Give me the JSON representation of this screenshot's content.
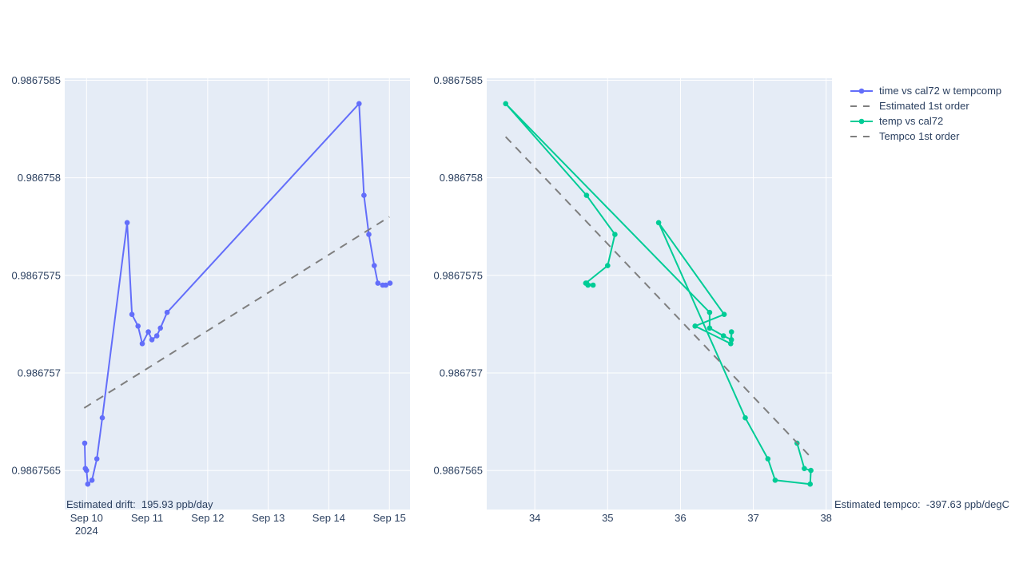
{
  "figure": {
    "background": "#ffffff",
    "plot_bgcolor": "#e5ecf6",
    "grid_color": "#ffffff",
    "text_color": "#2a3f5f"
  },
  "legend": {
    "position": "top-right",
    "items": [
      {
        "id": "time-series",
        "label": "time vs cal72 w tempcomp",
        "color": "#636efa",
        "dash": false,
        "marker": true
      },
      {
        "id": "drift-trend",
        "label": "Estimated 1st order",
        "color": "#7f7f7f",
        "dash": true,
        "marker": false
      },
      {
        "id": "temp-series",
        "label": "temp vs cal72",
        "color": "#00cc96",
        "dash": false,
        "marker": true
      },
      {
        "id": "tempco-trend",
        "label": "Tempco 1st order",
        "color": "#7f7f7f",
        "dash": true,
        "marker": false
      }
    ]
  },
  "chart_data": [
    {
      "type": "line",
      "id": "time",
      "title": "",
      "xlabel": "",
      "ylabel": "",
      "x_unit": "date (Sep 2024), days since Sep 10",
      "x_range": [
        -0.36,
        5.34
      ],
      "y_range": [
        0.9867563,
        0.98675851
      ],
      "grid": true,
      "legend_position": "right-of-second-subplot",
      "x_ticks": [
        {
          "value": 0,
          "label": "Sep 10",
          "sublabel": "2024"
        },
        {
          "value": 1,
          "label": "Sep 11"
        },
        {
          "value": 2,
          "label": "Sep 12"
        },
        {
          "value": 3,
          "label": "Sep 13"
        },
        {
          "value": 4,
          "label": "Sep 14"
        },
        {
          "value": 5,
          "label": "Sep 15"
        }
      ],
      "y_ticks": [
        {
          "value": 0.9867585,
          "label": "0.9867585"
        },
        {
          "value": 0.986758,
          "label": "0.986758"
        },
        {
          "value": 0.9867575,
          "label": "0.9867575"
        },
        {
          "value": 0.986757,
          "label": "0.986757"
        },
        {
          "value": 0.9867565,
          "label": "0.9867565"
        }
      ],
      "series": [
        {
          "id": "time-series",
          "name": "time vs cal72 w tempcomp",
          "mode": "lines+markers",
          "color": "#636efa",
          "dash": false,
          "x": [
            -0.03,
            -0.02,
            0.0,
            0.02,
            0.09,
            0.17,
            0.26,
            0.67,
            0.75,
            0.85,
            0.92,
            1.02,
            1.08,
            1.16,
            1.22,
            1.33,
            4.5,
            4.58,
            4.66,
            4.75,
            4.81,
            4.89,
            4.94,
            5.01
          ],
          "y": [
            0.98675664,
            0.98675651,
            0.9867565,
            0.98675643,
            0.98675645,
            0.98675656,
            0.98675677,
            0.98675777,
            0.9867573,
            0.98675724,
            0.98675715,
            0.98675721,
            0.98675717,
            0.98675719,
            0.98675723,
            0.98675731,
            0.98675838,
            0.98675791,
            0.98675771,
            0.98675755,
            0.98675746,
            0.98675745,
            0.98675745,
            0.98675746
          ]
        },
        {
          "id": "drift-trend",
          "name": "Estimated 1st order",
          "mode": "lines",
          "color": "#7f7f7f",
          "dash": true,
          "x": [
            -0.04,
            5.0
          ],
          "y": [
            0.98675682,
            0.9867578
          ]
        }
      ],
      "annotation": {
        "text": "Estimated drift:  195.93 ppb/day",
        "anchor": "inside-bottom-left"
      }
    },
    {
      "type": "line",
      "id": "temp",
      "title": "",
      "xlabel": "",
      "ylabel": "",
      "x_unit": "temperature (degC)",
      "x_range": [
        33.34,
        38.08
      ],
      "y_range": [
        0.9867563,
        0.98675851
      ],
      "grid": true,
      "x_ticks": [
        {
          "value": 34,
          "label": "34"
        },
        {
          "value": 35,
          "label": "35"
        },
        {
          "value": 36,
          "label": "36"
        },
        {
          "value": 37,
          "label": "37"
        },
        {
          "value": 38,
          "label": "38"
        }
      ],
      "y_ticks": [
        {
          "value": 0.9867585,
          "label": "0.9867585"
        },
        {
          "value": 0.986758,
          "label": "0.986758"
        },
        {
          "value": 0.9867575,
          "label": "0.9867575"
        },
        {
          "value": 0.986757,
          "label": "0.986757"
        },
        {
          "value": 0.9867565,
          "label": "0.9867565"
        }
      ],
      "series": [
        {
          "id": "temp-series",
          "name": "temp vs cal72",
          "mode": "lines+markers",
          "color": "#00cc96",
          "dash": false,
          "x": [
            37.6,
            37.7,
            37.79,
            37.78,
            37.3,
            37.2,
            36.89,
            35.7,
            36.6,
            36.2,
            36.69,
            36.7,
            36.7,
            36.59,
            36.4,
            36.4,
            33.6,
            34.71,
            35.1,
            35.0,
            34.7,
            34.73,
            34.8,
            34.71
          ],
          "y": [
            0.98675664,
            0.98675651,
            0.9867565,
            0.98675643,
            0.98675645,
            0.98675656,
            0.98675677,
            0.98675777,
            0.9867573,
            0.98675724,
            0.98675715,
            0.98675721,
            0.98675717,
            0.98675719,
            0.98675723,
            0.98675731,
            0.98675838,
            0.98675791,
            0.98675771,
            0.98675755,
            0.98675746,
            0.98675745,
            0.98675745,
            0.98675746
          ]
        },
        {
          "id": "tempco-trend",
          "name": "Tempco 1st order",
          "mode": "lines",
          "color": "#7f7f7f",
          "dash": true,
          "x": [
            33.6,
            37.81
          ],
          "y": [
            0.98675821,
            0.98675656
          ]
        }
      ],
      "annotation": {
        "text": "Estimated tempco:  -397.63 ppb/degC",
        "anchor": "outside-bottom-right"
      }
    }
  ]
}
